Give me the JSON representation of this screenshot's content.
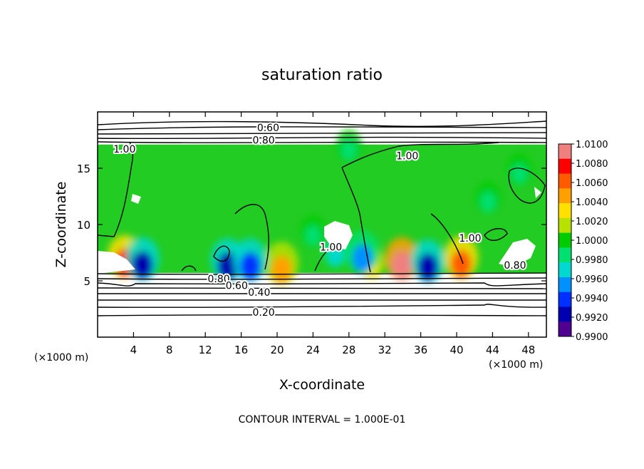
{
  "chart_data": {
    "type": "heatmap",
    "title": "saturation ratio",
    "xlabel": "X-coordinate",
    "ylabel": "Z-coordinate",
    "x_unit_label": "(×1000 m)",
    "y_unit_label": "(×1000 m)",
    "xlim": [
      0,
      50
    ],
    "ylim": [
      0,
      20
    ],
    "x_ticks": [
      4,
      8,
      12,
      16,
      20,
      24,
      28,
      32,
      36,
      40,
      44,
      48
    ],
    "y_ticks": [
      5,
      10,
      15
    ],
    "contour_interval_text": "CONTOUR INTERVAL = 1.000E-01",
    "colorbar": {
      "min": 0.99,
      "max": 1.01,
      "labels": [
        "1.0100",
        "1.0080",
        "1.0060",
        "1.0040",
        "1.0020",
        "1.0000",
        "0.9980",
        "0.9960",
        "0.9940",
        "0.9920",
        "0.9900"
      ],
      "colors": [
        "#f08080",
        "#ff0000",
        "#ff5a00",
        "#ffa000",
        "#ffe000",
        "#b8e000",
        "#00cc00",
        "#00e070",
        "#00d8d0",
        "#0090ff",
        "#0030ff",
        "#0000b0",
        "#500090"
      ]
    },
    "field_background_color": "#22cc22",
    "cloud_layer": {
      "z_bottom": 5.7,
      "z_top": 17.1
    },
    "anomalies": [
      {
        "x": 33.9,
        "z": 6.4,
        "value": 1.009
      },
      {
        "x": 20.5,
        "z": 6.0,
        "value": 1.004
      },
      {
        "x": 30.5,
        "z": 6.2,
        "value": 1.003
      },
      {
        "x": 40.5,
        "z": 6.5,
        "value": 1.006
      },
      {
        "x": 3.0,
        "z": 6.6,
        "value": 1.007
      },
      {
        "x": 5.0,
        "z": 6.4,
        "value": 0.9925
      },
      {
        "x": 29.5,
        "z": 7.0,
        "value": 0.996
      },
      {
        "x": 14.5,
        "z": 6.3,
        "value": 0.993
      },
      {
        "x": 17.0,
        "z": 6.3,
        "value": 0.9945
      },
      {
        "x": 36.8,
        "z": 6.2,
        "value": 0.993
      },
      {
        "x": 26.5,
        "z": 7.2,
        "value": 0.9975
      },
      {
        "x": 43.5,
        "z": 12.0,
        "value": 0.9985
      },
      {
        "x": 47.0,
        "z": 14.5,
        "value": 0.9988
      },
      {
        "x": 28.0,
        "z": 16.6,
        "value": 0.9985
      },
      {
        "x": 24.0,
        "z": 9.0,
        "value": 0.999
      }
    ],
    "contour_labels": [
      {
        "text": "0.60",
        "x": 19.0,
        "z": 18.6
      },
      {
        "text": "0.80",
        "x": 18.5,
        "z": 17.5
      },
      {
        "text": "1.00",
        "x": 3.0,
        "z": 16.7
      },
      {
        "text": "1.00",
        "x": 34.5,
        "z": 16.1
      },
      {
        "text": "1.00",
        "x": 26.0,
        "z": 8.0
      },
      {
        "text": "1.00",
        "x": 41.5,
        "z": 8.8
      },
      {
        "text": "0.80",
        "x": 13.5,
        "z": 5.2
      },
      {
        "text": "0.60",
        "x": 15.5,
        "z": 4.6
      },
      {
        "text": "0.40",
        "x": 18.0,
        "z": 4.0
      },
      {
        "text": "0.20",
        "x": 18.5,
        "z": 2.2
      },
      {
        "text": "0.80",
        "x": 46.5,
        "z": 6.4
      }
    ]
  }
}
